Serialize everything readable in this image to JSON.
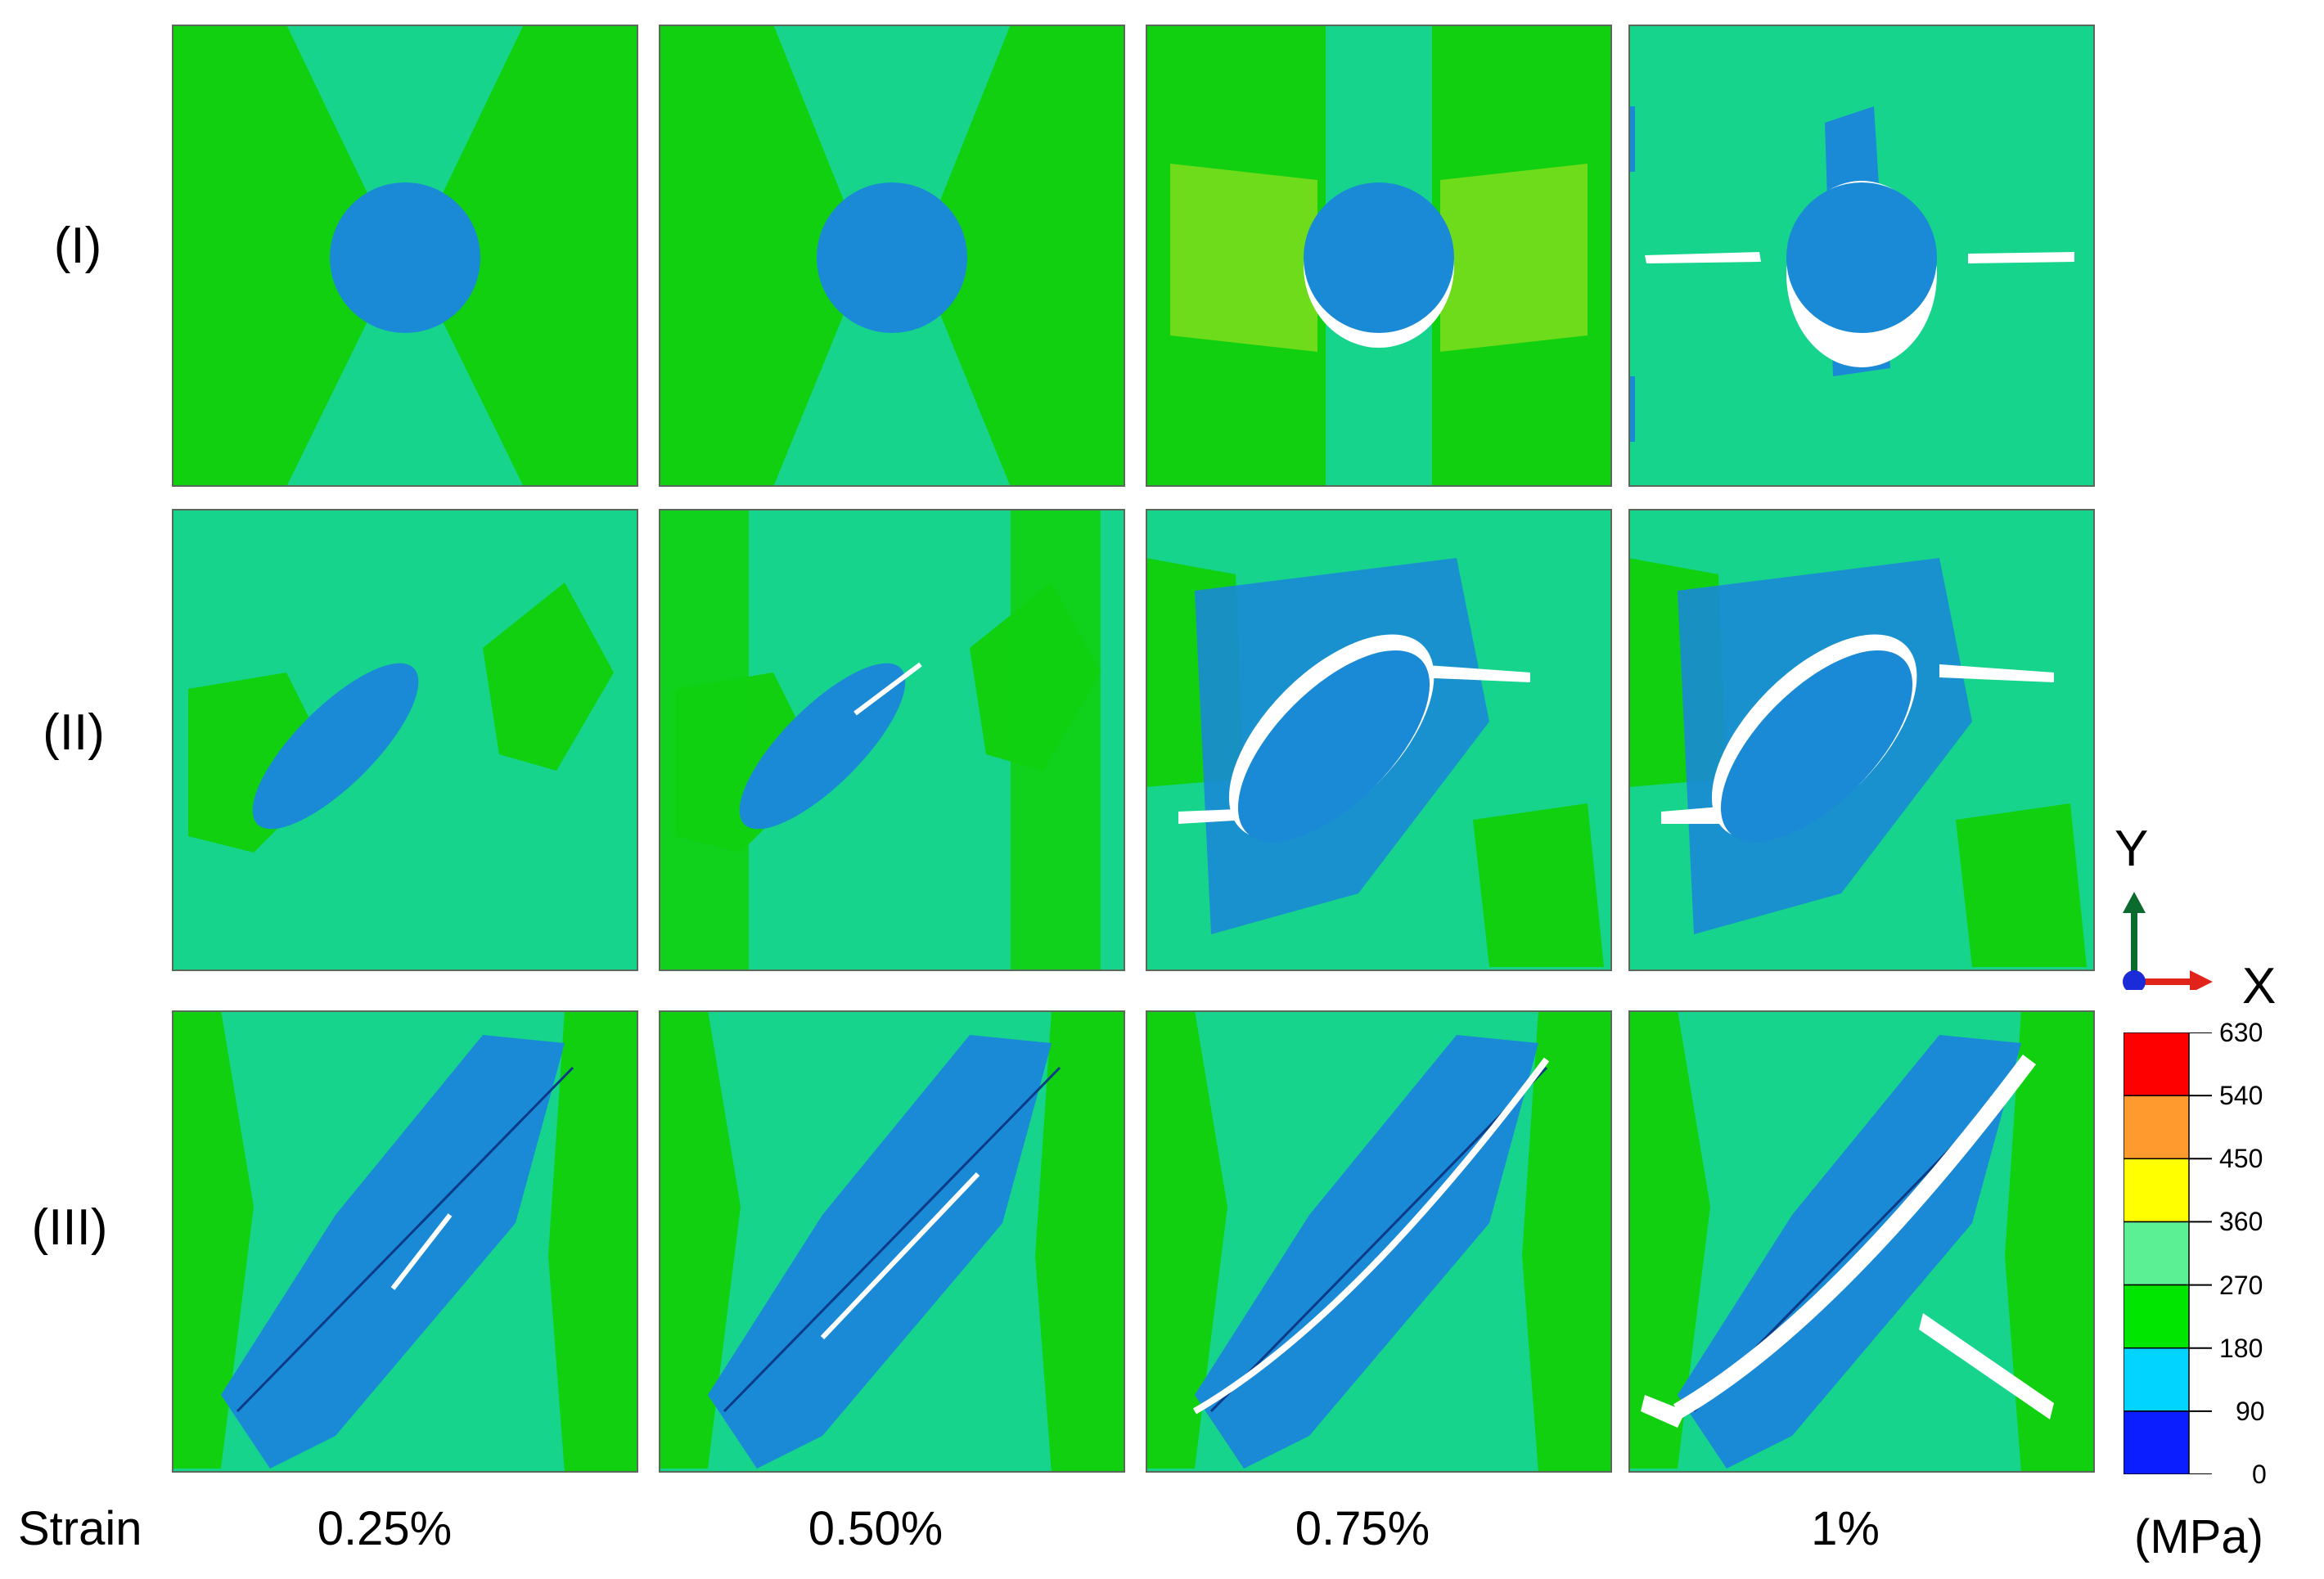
{
  "rows": [
    {
      "label": "(I)",
      "shape": "circle"
    },
    {
      "label": "(II)",
      "shape": "ellipse"
    },
    {
      "label": "(III)",
      "shape": "slender-ellipse"
    }
  ],
  "strain_label": "Strain",
  "columns": [
    "0.25%",
    "0.50%",
    "0.75%",
    "1%"
  ],
  "axes": {
    "y": "Y",
    "x": "X"
  },
  "colorbar": {
    "unit": "(MPa)",
    "ticks": [
      "630",
      "540",
      "450",
      "360",
      "270",
      "180",
      "90",
      "0"
    ],
    "colors": [
      "#ff0000",
      "#ff9a2e",
      "#ffff00",
      "#5cf094",
      "#00e600",
      "#00d4ff",
      "#0a1eff"
    ]
  },
  "colors": {
    "matrix_green": "#10d010",
    "matrix_teal": "#16d48c",
    "particle_blue": "#1a8ad6",
    "yellow_green": "#6edc1a",
    "crack": "#ffffff"
  }
}
